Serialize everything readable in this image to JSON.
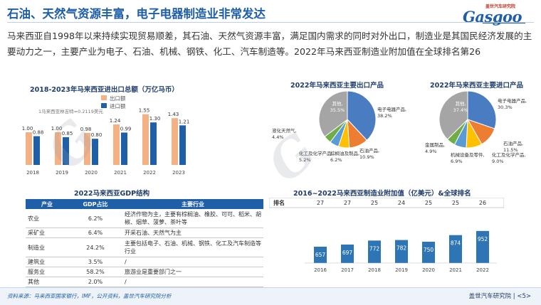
{
  "header": {
    "title": "石油、天然气资源丰富，电子电器制造业非常发达",
    "logo_small": "盖世汽车研究院",
    "logo_big": "Gasgoo"
  },
  "paragraph": "马来西亚自1998年以来持续实现贸易顺差，其石油、天然气资源丰富，满足国内需求的同时对外出口，制造业是其国民经济发展的主要动力之一，主要产业为电子、石油、机械、钢铁、化工、汽车制造等。2022年马来西亚制造业附加值在全球排名第26",
  "trade_section": {
    "title": "2018-2023年马来西亚进出口总额（万亿马币）",
    "note": "1马来西亚林吉特≈0.2119美元",
    "chart_data": {
      "type": "bar",
      "categories": [
        "2018",
        "2019",
        "2020",
        "2021",
        "2022",
        "2023"
      ],
      "series": [
        {
          "name": "出口额",
          "values": [
            1.0,
            1.0,
            0.98,
            1.24,
            1.55,
            1.43
          ],
          "labels": [
            "1.00",
            "1.00",
            "0.98",
            "1.24",
            "1.55",
            "1.43"
          ],
          "color": "#f4b183"
        },
        {
          "name": "进口额",
          "values": [
            0.88,
            0.85,
            0.8,
            0.99,
            1.3,
            1.21
          ],
          "labels": [
            "0.88",
            "0.85",
            "0.80",
            "0.99",
            "1.30",
            "1.21"
          ],
          "color": "#1f5fa8"
        }
      ],
      "legend": "top-left"
    }
  },
  "export_section": {
    "title": "2022年马来西亚主要出口产品",
    "chart_data": {
      "type": "pie",
      "slices": [
        {
          "label": "电子电器产品,",
          "pct": "38.2%",
          "value": 38.2,
          "color": "#4a7cc1"
        },
        {
          "label": "石油产品,",
          "pct": "10.9%",
          "value": 10.9,
          "color": "#ed7d31"
        },
        {
          "label": "棕榈油及制品,",
          "pct": "6.2%",
          "value": 6.2,
          "color": "#ffc000"
        },
        {
          "label": "化工及化学产品,",
          "pct": "5.2%",
          "value": 5.2,
          "color": "#5b9bd5"
        },
        {
          "label": "液化天然气,",
          "pct": "4.4%",
          "value": 4.4,
          "color": "#70ad47"
        },
        {
          "label": "其他,",
          "pct": "35.5%",
          "value": 35.5,
          "color": "#a5a5a5"
        }
      ]
    }
  },
  "import_section": {
    "title": "2022年马来西亚主要进口产品",
    "chart_data": {
      "type": "pie",
      "slices": [
        {
          "label": "电子电器产品,",
          "pct": "30.3%",
          "value": 30.3,
          "color": "#4a7cc1"
        },
        {
          "label": "石油产品,",
          "pct": "11.5%",
          "value": 11.5,
          "color": "#ed7d31"
        },
        {
          "label": "化工及化学产品,",
          "pct": "9.0%",
          "value": 9.0,
          "color": "#ffc000"
        },
        {
          "label": "机械设备及零件,",
          "pct": "6.9%",
          "value": 6.9,
          "color": "#5b9bd5"
        },
        {
          "label": "金属制品,",
          "pct": "4.9%",
          "value": 4.9,
          "color": "#70ad47"
        },
        {
          "label": "其他,",
          "pct": "37.4%",
          "value": 37.4,
          "color": "#a5a5a5"
        }
      ]
    }
  },
  "gdp_section": {
    "title": "2022马来西亚GDP结构",
    "headers": [
      "产业",
      "GDP占比",
      "主要行业"
    ],
    "rows": [
      {
        "sector": "农业",
        "share": "6.2%",
        "industries": "经济作物为主，主要有棕榈油、橡胶、可可、稻米、胡椒、烟草、菠萝、茶叶等"
      },
      {
        "sector": "采矿业",
        "share": "6.4%",
        "industries": "开采石油、天然气为主"
      },
      {
        "sector": "制造业",
        "share": "24.2%",
        "industries": "主要包括电子、石油、机械、钢铁、化工及汽车制造等行业"
      },
      {
        "sector": "建筑业",
        "share": "3.5%",
        "industries": "/"
      },
      {
        "sector": "服务业",
        "share": "58.2%",
        "industries": "旅游业是重要部门之一"
      },
      {
        "sector": "其他",
        "share": "2.0%",
        "industries": "/"
      }
    ]
  },
  "mfg_section": {
    "title": "2016~2022马来西亚制造业附加值（亿美元）&全球排名",
    "rank_label": "排名",
    "chart_data": {
      "type": "bar",
      "categories": [
        "2016",
        "2017",
        "2018",
        "2019",
        "2020",
        "2021",
        "2022"
      ],
      "ranks": [
        "27",
        "27",
        "25",
        "24",
        "25",
        "25",
        "26"
      ],
      "values": [
        657,
        697,
        772,
        782,
        750,
        874,
        952
      ],
      "value_labels": [
        "657",
        "697",
        "772",
        "782",
        "750",
        "874",
        "952"
      ],
      "color": "#2e75b6"
    }
  },
  "footer": {
    "source": "资料来源：马来西亚国家银行，IMF，公开资料，盖世汽车研究院分析",
    "brand": "盖世汽车研究院",
    "page": "| <5>"
  }
}
